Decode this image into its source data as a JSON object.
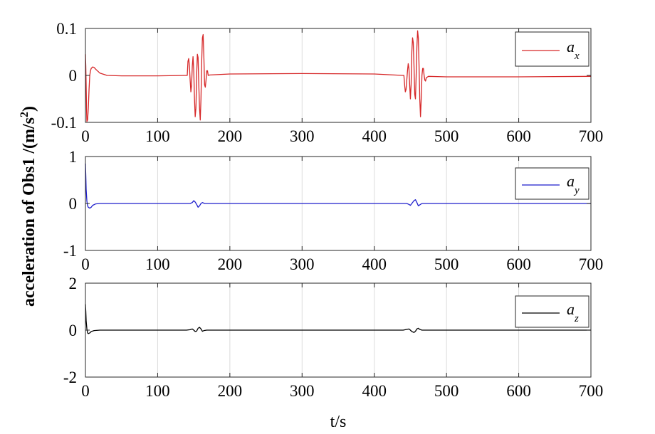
{
  "ylabel": {
    "main": "acceleration of Obs1 /(m/s",
    "sup": "2",
    "close": ")"
  },
  "xlabel": "t/s",
  "chart_data": [
    {
      "type": "line",
      "xlim": [
        0,
        700
      ],
      "ylim": [
        -0.1,
        0.1
      ],
      "xticks": [
        0,
        100,
        200,
        300,
        400,
        500,
        600,
        700
      ],
      "yticks": [
        -0.1,
        0,
        0.1
      ],
      "ytick_labels": [
        "-0.1",
        "0",
        "0.1"
      ],
      "grid": true,
      "legend_position": "top-right",
      "series": [
        {
          "name": "a_x",
          "name_base": "a",
          "name_sub": "x",
          "color": "#d62728",
          "points": [
            [
              0,
              0.045
            ],
            [
              0.5,
              0.02
            ],
            [
              1,
              -0.02
            ],
            [
              1.5,
              -0.07
            ],
            [
              2,
              -0.098
            ],
            [
              3,
              -0.095
            ],
            [
              4,
              -0.07
            ],
            [
              5,
              -0.03
            ],
            [
              6,
              0.0
            ],
            [
              7,
              0.01
            ],
            [
              8,
              0.015
            ],
            [
              10,
              0.018
            ],
            [
              12,
              0.017
            ],
            [
              15,
              0.012
            ],
            [
              20,
              0.005
            ],
            [
              30,
              0.0
            ],
            [
              50,
              -0.001
            ],
            [
              100,
              -0.001
            ],
            [
              140,
              0.0
            ],
            [
              141,
              0.0
            ],
            [
              142,
              0.03
            ],
            [
              143,
              0.036
            ],
            [
              144,
              0.02
            ],
            [
              145,
              -0.01
            ],
            [
              146,
              -0.035
            ],
            [
              147,
              -0.02
            ],
            [
              148,
              0.02
            ],
            [
              149,
              0.04
            ],
            [
              150,
              0.01
            ],
            [
              151,
              -0.05
            ],
            [
              152,
              -0.088
            ],
            [
              153,
              -0.07
            ],
            [
              154,
              0.0
            ],
            [
              155,
              0.045
            ],
            [
              156,
              0.038
            ],
            [
              157,
              -0.02
            ],
            [
              158,
              -0.07
            ],
            [
              159,
              -0.095
            ],
            [
              160,
              -0.05
            ],
            [
              161,
              0.03
            ],
            [
              162,
              0.08
            ],
            [
              163,
              0.087
            ],
            [
              164,
              0.04
            ],
            [
              165,
              -0.02
            ],
            [
              166,
              -0.025
            ],
            [
              167,
              -0.01
            ],
            [
              168,
              0.01
            ],
            [
              169,
              0.01
            ],
            [
              170,
              0.0
            ],
            [
              172,
              0.001
            ],
            [
              200,
              0.003
            ],
            [
              300,
              0.004
            ],
            [
              400,
              0.003
            ],
            [
              440,
              0.0
            ],
            [
              441,
              0.0
            ],
            [
              442,
              -0.02
            ],
            [
              443,
              -0.035
            ],
            [
              444,
              -0.03
            ],
            [
              445,
              -0.01
            ],
            [
              446,
              0.01
            ],
            [
              447,
              0.025
            ],
            [
              448,
              0.015
            ],
            [
              449,
              -0.02
            ],
            [
              450,
              -0.05
            ],
            [
              451,
              -0.02
            ],
            [
              452,
              0.05
            ],
            [
              453,
              0.08
            ],
            [
              454,
              0.07
            ],
            [
              455,
              0.02
            ],
            [
              456,
              -0.04
            ],
            [
              457,
              -0.05
            ],
            [
              458,
              0.0
            ],
            [
              459,
              0.06
            ],
            [
              460,
              0.095
            ],
            [
              461,
              0.08
            ],
            [
              462,
              0.02
            ],
            [
              463,
              -0.05
            ],
            [
              464,
              -0.088
            ],
            [
              465,
              -0.05
            ],
            [
              466,
              0.0
            ],
            [
              467,
              0.015
            ],
            [
              468,
              0.015
            ],
            [
              469,
              0.0
            ],
            [
              470,
              -0.01
            ],
            [
              471,
              -0.012
            ],
            [
              472,
              -0.005
            ],
            [
              475,
              -0.002
            ],
            [
              500,
              -0.003
            ],
            [
              600,
              -0.003
            ],
            [
              700,
              -0.002
            ]
          ]
        }
      ]
    },
    {
      "type": "line",
      "xlim": [
        0,
        700
      ],
      "ylim": [
        -1,
        1
      ],
      "xticks": [
        0,
        100,
        200,
        300,
        400,
        500,
        600,
        700
      ],
      "yticks": [
        -1,
        0,
        1
      ],
      "ytick_labels": [
        "-1",
        "0",
        "1"
      ],
      "grid": true,
      "legend_position": "top-right",
      "series": [
        {
          "name": "a_y",
          "name_base": "a",
          "name_sub": "y",
          "color": "#1f1fcc",
          "points": [
            [
              0,
              0.85
            ],
            [
              0.5,
              0.6
            ],
            [
              1,
              0.3
            ],
            [
              2,
              0.05
            ],
            [
              3,
              -0.05
            ],
            [
              4,
              -0.08
            ],
            [
              6,
              -0.1
            ],
            [
              8,
              -0.08
            ],
            [
              10,
              -0.04
            ],
            [
              14,
              -0.01
            ],
            [
              20,
              0.0
            ],
            [
              100,
              0.0
            ],
            [
              145,
              0.0
            ],
            [
              148,
              0.02
            ],
            [
              150,
              0.06
            ],
            [
              152,
              0.03
            ],
            [
              154,
              -0.02
            ],
            [
              156,
              -0.08
            ],
            [
              158,
              -0.05
            ],
            [
              160,
              0.0
            ],
            [
              162,
              0.02
            ],
            [
              165,
              0.0
            ],
            [
              200,
              0.0
            ],
            [
              445,
              0.0
            ],
            [
              448,
              -0.02
            ],
            [
              450,
              -0.04
            ],
            [
              452,
              0.0
            ],
            [
              455,
              0.06
            ],
            [
              457,
              0.08
            ],
            [
              459,
              0.02
            ],
            [
              461,
              -0.05
            ],
            [
              463,
              -0.03
            ],
            [
              466,
              0.0
            ],
            [
              700,
              0.0
            ]
          ]
        }
      ]
    },
    {
      "type": "line",
      "xlim": [
        0,
        700
      ],
      "ylim": [
        -2,
        2
      ],
      "xticks": [
        0,
        100,
        200,
        300,
        400,
        500,
        600,
        700
      ],
      "yticks": [
        -2,
        0,
        2
      ],
      "ytick_labels": [
        "-2",
        "0",
        "2"
      ],
      "grid": true,
      "legend_position": "top-right",
      "series": [
        {
          "name": "a_z",
          "name_base": "a",
          "name_sub": "z",
          "color": "#000000",
          "points": [
            [
              0,
              1.1
            ],
            [
              0.5,
              0.8
            ],
            [
              1,
              0.4
            ],
            [
              2,
              0.05
            ],
            [
              3,
              -0.12
            ],
            [
              4,
              -0.15
            ],
            [
              6,
              -0.12
            ],
            [
              8,
              -0.06
            ],
            [
              12,
              -0.02
            ],
            [
              20,
              0.0
            ],
            [
              140,
              0.0
            ],
            [
              145,
              0.02
            ],
            [
              148,
              0.05
            ],
            [
              150,
              0.0
            ],
            [
              152,
              -0.06
            ],
            [
              154,
              -0.04
            ],
            [
              156,
              0.08
            ],
            [
              158,
              0.12
            ],
            [
              160,
              0.05
            ],
            [
              162,
              -0.05
            ],
            [
              164,
              -0.02
            ],
            [
              168,
              0.0
            ],
            [
              440,
              0.0
            ],
            [
              445,
              0.03
            ],
            [
              448,
              0.05
            ],
            [
              450,
              0.0
            ],
            [
              452,
              -0.06
            ],
            [
              455,
              -0.1
            ],
            [
              457,
              -0.05
            ],
            [
              459,
              0.05
            ],
            [
              461,
              0.08
            ],
            [
              463,
              0.03
            ],
            [
              466,
              0.0
            ],
            [
              700,
              0.0
            ]
          ]
        }
      ]
    }
  ]
}
